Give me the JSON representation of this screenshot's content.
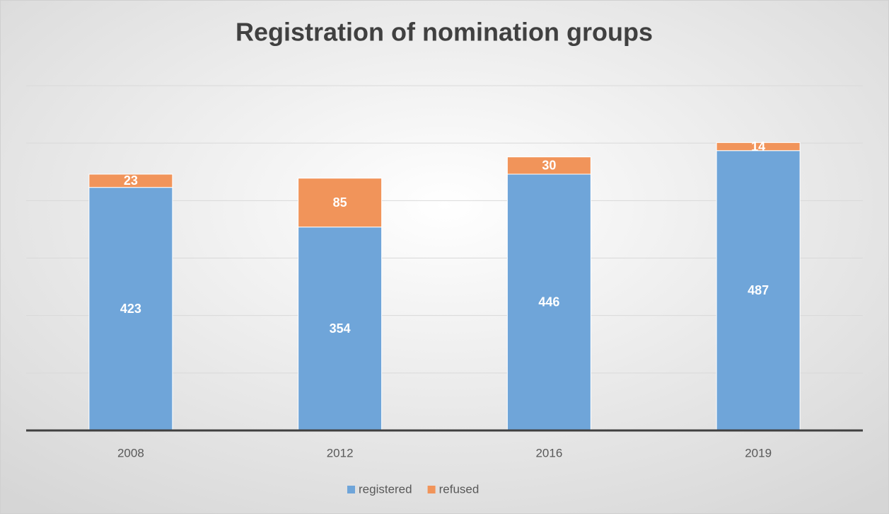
{
  "chart_data": {
    "type": "stacked_bar",
    "title": "Registration of nomination groups",
    "categories": [
      "2008",
      "2012",
      "2016",
      "2019"
    ],
    "series": [
      {
        "name": "registered",
        "color": "#6fa5d9",
        "values": [
          423,
          354,
          446,
          487
        ]
      },
      {
        "name": "refused",
        "color": "#f1945a",
        "values": [
          23,
          85,
          30,
          14
        ]
      }
    ],
    "ylim": [
      0,
      600
    ],
    "yticks": [
      0,
      100,
      200,
      300,
      400,
      500,
      600
    ],
    "grid": true,
    "legend": "bottom"
  }
}
